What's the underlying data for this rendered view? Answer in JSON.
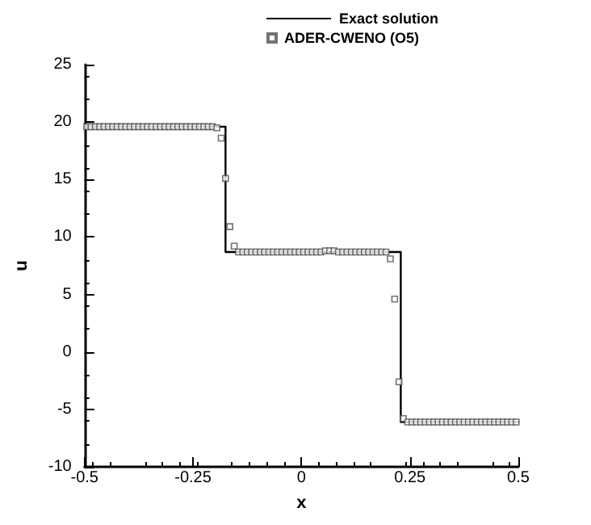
{
  "chart_data": {
    "type": "scatter",
    "xlabel": "x",
    "ylabel": "u",
    "xlim": [
      -0.5,
      0.5
    ],
    "xticks": [
      -0.5,
      -0.25,
      0,
      0.25,
      0.5
    ],
    "ylim": [
      -10,
      25
    ],
    "yticks": [
      -10,
      -5,
      0,
      5,
      10,
      15,
      20,
      25
    ],
    "grid": false,
    "legend": "top right",
    "series": [
      {
        "name": "Exact solution",
        "type": "line",
        "color": "#000000",
        "marker": "none",
        "line_style": "solid",
        "x": [
          -0.5,
          -0.175,
          -0.175,
          0.229,
          0.229,
          0.5
        ],
        "values": [
          19.6,
          19.6,
          8.7,
          8.7,
          -6.1,
          -6.1
        ]
      },
      {
        "name": "ADER-CWENO (O5)",
        "color": "#505050",
        "marker": "square",
        "x": [
          -0.495,
          -0.485,
          -0.475,
          -0.465,
          -0.455,
          -0.445,
          -0.435,
          -0.425,
          -0.415,
          -0.405,
          -0.395,
          -0.385,
          -0.375,
          -0.365,
          -0.355,
          -0.345,
          -0.335,
          -0.325,
          -0.315,
          -0.305,
          -0.295,
          -0.285,
          -0.275,
          -0.265,
          -0.255,
          -0.245,
          -0.235,
          -0.225,
          -0.215,
          -0.205,
          -0.195,
          -0.185,
          -0.175,
          -0.165,
          -0.155,
          -0.145,
          -0.135,
          -0.125,
          -0.115,
          -0.105,
          -0.095,
          -0.085,
          -0.075,
          -0.065,
          -0.055,
          -0.045,
          -0.035,
          -0.025,
          -0.015,
          -0.005,
          0.005,
          0.015,
          0.025,
          0.035,
          0.045,
          0.055,
          0.065,
          0.075,
          0.085,
          0.095,
          0.105,
          0.115,
          0.125,
          0.135,
          0.145,
          0.155,
          0.165,
          0.175,
          0.185,
          0.195,
          0.205,
          0.215,
          0.225,
          0.235,
          0.245,
          0.255,
          0.265,
          0.275,
          0.285,
          0.295,
          0.305,
          0.315,
          0.325,
          0.335,
          0.345,
          0.355,
          0.365,
          0.375,
          0.385,
          0.395,
          0.405,
          0.415,
          0.425,
          0.435,
          0.445,
          0.455,
          0.465,
          0.475,
          0.485,
          0.495
        ],
        "values": [
          19.6,
          19.6,
          19.6,
          19.6,
          19.6,
          19.6,
          19.6,
          19.6,
          19.6,
          19.6,
          19.6,
          19.6,
          19.6,
          19.6,
          19.6,
          19.6,
          19.6,
          19.6,
          19.6,
          19.6,
          19.6,
          19.6,
          19.6,
          19.6,
          19.6,
          19.6,
          19.6,
          19.6,
          19.6,
          19.6,
          19.5,
          18.6,
          15.1,
          10.9,
          9.2,
          8.7,
          8.7,
          8.7,
          8.7,
          8.7,
          8.7,
          8.7,
          8.7,
          8.7,
          8.7,
          8.7,
          8.7,
          8.7,
          8.7,
          8.7,
          8.7,
          8.7,
          8.7,
          8.7,
          8.7,
          8.8,
          8.8,
          8.8,
          8.7,
          8.7,
          8.7,
          8.7,
          8.7,
          8.7,
          8.7,
          8.7,
          8.7,
          8.7,
          8.7,
          8.7,
          8.1,
          4.6,
          -2.6,
          -5.8,
          -6.1,
          -6.1,
          -6.1,
          -6.1,
          -6.1,
          -6.1,
          -6.1,
          -6.1,
          -6.1,
          -6.1,
          -6.1,
          -6.1,
          -6.1,
          -6.1,
          -6.1,
          -6.1,
          -6.1,
          -6.1,
          -6.1,
          -6.1,
          -6.1,
          -6.1,
          -6.1,
          -6.1,
          -6.1,
          -6.1
        ]
      }
    ]
  }
}
